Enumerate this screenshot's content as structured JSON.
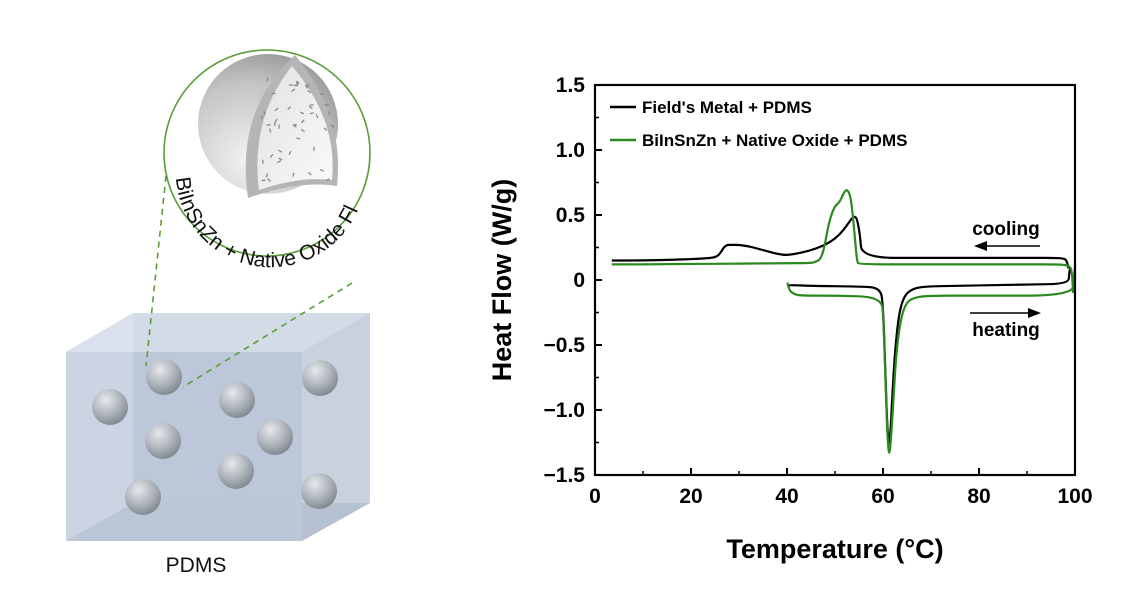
{
  "diagram": {
    "matrix_label": "PDMS",
    "inset_label": "BiInSnZn + Native Oxide Flakes",
    "colors": {
      "inset_circle": "#5a9e3a",
      "matrix": "#b9c6d8",
      "particle": "#9ea4ab"
    }
  },
  "chart_data": {
    "type": "line",
    "title": "",
    "xlabel": "Temperature (°C)",
    "ylabel": "Heat Flow (W/g)",
    "xlim": [
      0,
      100
    ],
    "ylim": [
      -1.5,
      1.5
    ],
    "xticks": [
      "0",
      "20",
      "40",
      "60",
      "80",
      "100"
    ],
    "yticks": [
      "1.5",
      "1.0",
      "0.5",
      "0",
      "-0.5",
      "-1.0",
      "-1.5"
    ],
    "grid": false,
    "legend_position": "top-left",
    "annotations": {
      "cooling": "cooling",
      "heating": "heating"
    },
    "series": [
      {
        "name": "Field's Metal + PDMS",
        "color": "#000000",
        "segments": [
          {
            "label": "cooling",
            "x": [
              98.6,
              98.3,
              97.5,
              90,
              70,
              55.6,
              55.2,
              54.6,
              54.1,
              53.6,
              52.5,
              51,
              49,
              46,
              43,
              40,
              38,
              36,
              34,
              32,
              30,
              28.5,
              27.5,
              26.8,
              26,
              25,
              20,
              10,
              3.5
            ],
            "y": [
              0.09,
              0.15,
              0.17,
              0.17,
              0.17,
              0.17,
              0.35,
              0.47,
              0.49,
              0.48,
              0.42,
              0.35,
              0.29,
              0.24,
              0.21,
              0.19,
              0.2,
              0.22,
              0.24,
              0.26,
              0.27,
              0.27,
              0.27,
              0.25,
              0.2,
              0.17,
              0.16,
              0.15,
              0.15
            ]
          },
          {
            "label": "heating",
            "x": [
              40.2,
              40.5,
              41.5,
              45,
              55,
              59.5,
              60,
              60.4,
              60.8,
              61.2,
              61.6,
              62,
              62.6,
              63.3,
              64.2,
              65.5,
              68,
              75,
              90,
              98.6,
              98.8,
              99
            ],
            "y": [
              -0.05,
              -0.04,
              -0.04,
              -0.045,
              -0.05,
              -0.06,
              -0.2,
              -0.6,
              -1.05,
              -1.3,
              -1.15,
              -0.85,
              -0.5,
              -0.27,
              -0.14,
              -0.08,
              -0.05,
              -0.045,
              -0.035,
              -0.03,
              0.05,
              0.1
            ]
          }
        ]
      },
      {
        "name": "BiInSnZn + Native Oxide + PDMS",
        "color": "#2a8a1e",
        "segments": [
          {
            "label": "cooling",
            "x": [
              99.6,
              99.4,
              99,
              97,
              90,
              70,
              55,
              54.6,
              54.2,
              53.7,
              53.2,
              52.5,
              51.8,
              51,
              50,
              49.2,
              48.5,
              47.8,
              47,
              46,
              45,
              40,
              30,
              20,
              10,
              3.5
            ],
            "y": [
              -0.1,
              0.05,
              0.11,
              0.12,
              0.12,
              0.12,
              0.12,
              0.14,
              0.3,
              0.5,
              0.65,
              0.7,
              0.67,
              0.6,
              0.57,
              0.5,
              0.4,
              0.25,
              0.16,
              0.14,
              0.13,
              0.13,
              0.125,
              0.125,
              0.12,
              0.12
            ]
          },
          {
            "label": "heating",
            "x": [
              40.1,
              40.5,
              41.5,
              43,
              50,
              59.7,
              60.1,
              60.5,
              60.9,
              61.3,
              61.7,
              62.2,
              62.8,
              63.6,
              64.6,
              66,
              69,
              80,
              99.5,
              99.8,
              100
            ],
            "y": [
              -0.02,
              -0.08,
              -0.11,
              -0.12,
              -0.12,
              -0.13,
              -0.3,
              -0.75,
              -1.2,
              -1.37,
              -1.2,
              -0.9,
              -0.55,
              -0.32,
              -0.19,
              -0.14,
              -0.12,
              -0.12,
              -0.12,
              0.02,
              0.1
            ]
          }
        ]
      }
    ]
  }
}
